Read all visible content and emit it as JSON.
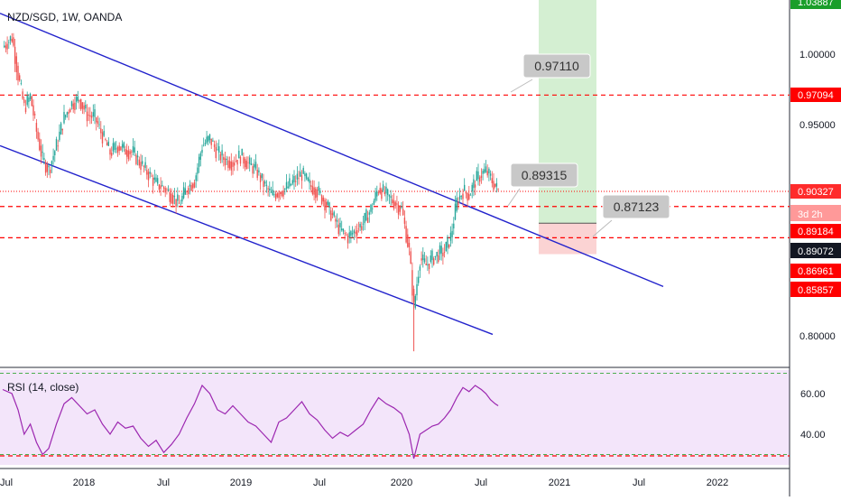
{
  "header": {
    "title": "NZD/SGD, 1W, OANDA"
  },
  "rsi_panel": {
    "title": "RSI (14, close)"
  },
  "colors": {
    "up": "#26a69a",
    "down": "#ef5350",
    "channel": "#2222cc",
    "level": "#ff0000",
    "target_zone": "#d4efd2",
    "stop_zone": "#fbd3d3",
    "rsi_line": "#9c27b0",
    "rsi_bg": "#f3e5fa",
    "rsi_band": "#4caf50"
  },
  "chart_data": [
    {
      "type": "candlestick",
      "title": "NZD/SGD, 1W, OANDA",
      "x_ticks": [
        "Jul",
        "2018",
        "Jul",
        "2019",
        "Jul",
        "2020",
        "Jul",
        "2021",
        "Jul",
        "2022"
      ],
      "y_ticks": [
        "1.00000",
        "0.95000",
        "0.80000"
      ],
      "ylim": [
        0.78,
        1.035
      ],
      "horizontal_levels": [
        0.97094,
        0.89184,
        0.86961
      ],
      "price_labels": [
        {
          "text": "1.03887",
          "kind": "target"
        },
        {
          "text": "0.97094",
          "kind": "level"
        },
        {
          "text": "0.90327",
          "kind": "last"
        },
        {
          "text": "3d 2h",
          "kind": "countdown"
        },
        {
          "text": "0.89184",
          "kind": "level"
        },
        {
          "text": "0.89072",
          "kind": "cursor"
        },
        {
          "text": "0.86961",
          "kind": "level"
        },
        {
          "text": "0.85857",
          "kind": "stop"
        }
      ],
      "callouts": [
        "0.97110",
        "0.89315",
        "0.87123"
      ],
      "close_path": [
        [
          0,
          1.005
        ],
        [
          6,
          1.012
        ],
        [
          10,
          0.985
        ],
        [
          14,
          0.962
        ],
        [
          18,
          0.97
        ],
        [
          22,
          0.945
        ],
        [
          26,
          0.925
        ],
        [
          30,
          0.918
        ],
        [
          35,
          0.935
        ],
        [
          40,
          0.955
        ],
        [
          45,
          0.965
        ],
        [
          50,
          0.968
        ],
        [
          55,
          0.957
        ],
        [
          60,
          0.955
        ],
        [
          65,
          0.942
        ],
        [
          70,
          0.93
        ],
        [
          75,
          0.935
        ],
        [
          80,
          0.932
        ],
        [
          85,
          0.93
        ],
        [
          90,
          0.922
        ],
        [
          95,
          0.915
        ],
        [
          100,
          0.908
        ],
        [
          105,
          0.905
        ],
        [
          110,
          0.9
        ],
        [
          115,
          0.893
        ],
        [
          120,
          0.905
        ],
        [
          125,
          0.91
        ],
        [
          130,
          0.935
        ],
        [
          135,
          0.94
        ],
        [
          140,
          0.93
        ],
        [
          145,
          0.925
        ],
        [
          150,
          0.923
        ],
        [
          155,
          0.928
        ],
        [
          160,
          0.922
        ],
        [
          165,
          0.918
        ],
        [
          170,
          0.908
        ],
        [
          175,
          0.9
        ],
        [
          180,
          0.902
        ],
        [
          185,
          0.905
        ],
        [
          190,
          0.91
        ],
        [
          195,
          0.915
        ],
        [
          200,
          0.907
        ],
        [
          205,
          0.903
        ],
        [
          210,
          0.895
        ],
        [
          215,
          0.885
        ],
        [
          220,
          0.875
        ],
        [
          225,
          0.87
        ],
        [
          230,
          0.875
        ],
        [
          235,
          0.88
        ],
        [
          240,
          0.89
        ],
        [
          245,
          0.905
        ],
        [
          250,
          0.9
        ],
        [
          255,
          0.895
        ],
        [
          260,
          0.89
        ],
        [
          265,
          0.86
        ],
        [
          268,
          0.82
        ],
        [
          272,
          0.855
        ],
        [
          276,
          0.85
        ],
        [
          280,
          0.855
        ],
        [
          284,
          0.858
        ],
        [
          288,
          0.86
        ],
        [
          292,
          0.87
        ],
        [
          296,
          0.895
        ],
        [
          300,
          0.903
        ],
        [
          304,
          0.9
        ],
        [
          308,
          0.91
        ],
        [
          312,
          0.915
        ],
        [
          315,
          0.917
        ],
        [
          318,
          0.912
        ],
        [
          321,
          0.906
        ],
        [
          323,
          0.903
        ]
      ]
    },
    {
      "type": "line",
      "title": "RSI (14, close)",
      "y_ticks": [
        "60.00",
        "40.00"
      ],
      "ylim": [
        25,
        75
      ],
      "bands": [
        70,
        30
      ],
      "values": [
        [
          0,
          62
        ],
        [
          6,
          60
        ],
        [
          10,
          52
        ],
        [
          14,
          40
        ],
        [
          18,
          45
        ],
        [
          22,
          36
        ],
        [
          26,
          30
        ],
        [
          30,
          33
        ],
        [
          35,
          45
        ],
        [
          40,
          55
        ],
        [
          45,
          58
        ],
        [
          50,
          54
        ],
        [
          55,
          50
        ],
        [
          60,
          52
        ],
        [
          65,
          45
        ],
        [
          70,
          40
        ],
        [
          75,
          46
        ],
        [
          80,
          43
        ],
        [
          85,
          44
        ],
        [
          90,
          38
        ],
        [
          95,
          34
        ],
        [
          100,
          37
        ],
        [
          105,
          31
        ],
        [
          110,
          35
        ],
        [
          115,
          40
        ],
        [
          120,
          48
        ],
        [
          125,
          55
        ],
        [
          130,
          64
        ],
        [
          135,
          60
        ],
        [
          140,
          52
        ],
        [
          145,
          50
        ],
        [
          150,
          54
        ],
        [
          155,
          50
        ],
        [
          160,
          46
        ],
        [
          165,
          44
        ],
        [
          170,
          40
        ],
        [
          175,
          36
        ],
        [
          180,
          46
        ],
        [
          185,
          48
        ],
        [
          190,
          52
        ],
        [
          195,
          56
        ],
        [
          200,
          50
        ],
        [
          205,
          47
        ],
        [
          210,
          42
        ],
        [
          215,
          38
        ],
        [
          220,
          41
        ],
        [
          225,
          39
        ],
        [
          230,
          42
        ],
        [
          235,
          45
        ],
        [
          240,
          52
        ],
        [
          245,
          58
        ],
        [
          250,
          55
        ],
        [
          255,
          53
        ],
        [
          260,
          50
        ],
        [
          265,
          40
        ],
        [
          268,
          28
        ],
        [
          272,
          40
        ],
        [
          276,
          42
        ],
        [
          280,
          44
        ],
        [
          284,
          45
        ],
        [
          288,
          48
        ],
        [
          292,
          52
        ],
        [
          296,
          58
        ],
        [
          300,
          63
        ],
        [
          304,
          61
        ],
        [
          308,
          64
        ],
        [
          312,
          62
        ],
        [
          315,
          60
        ],
        [
          318,
          57
        ],
        [
          321,
          55
        ],
        [
          323,
          54
        ]
      ]
    }
  ]
}
